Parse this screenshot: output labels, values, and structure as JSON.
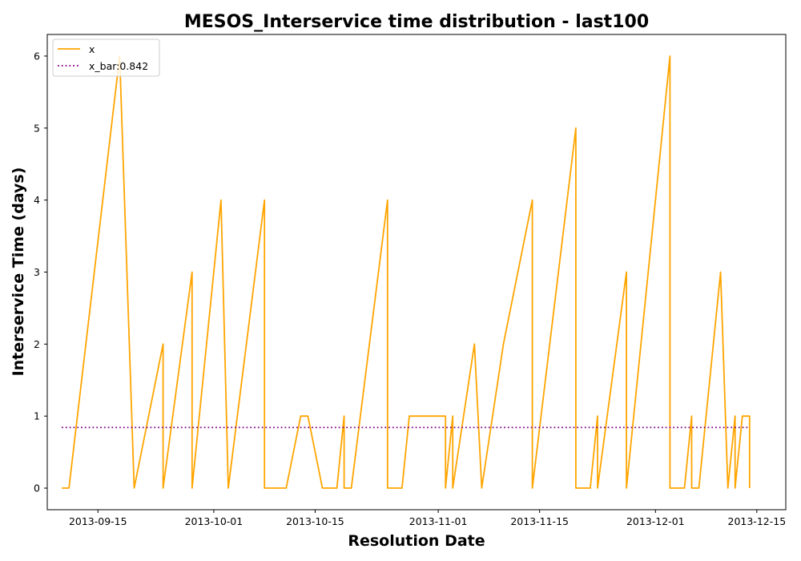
{
  "chart_data": {
    "type": "line",
    "title": "MESOS_Interservice time distribution - last100",
    "xlabel": "Resolution Date",
    "ylabel": "Interservice Time (days)",
    "xlim": [
      "2013-09-08",
      "2013-12-19"
    ],
    "ylim": [
      -0.3,
      6.3
    ],
    "xticks": [
      "2013-09-15",
      "2013-10-01",
      "2013-10-15",
      "2013-11-01",
      "2013-11-15",
      "2013-12-01",
      "2013-12-15"
    ],
    "yticks": [
      0,
      1,
      2,
      3,
      4,
      5,
      6
    ],
    "grid": false,
    "legend_location": "upper left",
    "colors": {
      "x": "#ffa500",
      "x_bar": "#800080"
    },
    "series": [
      {
        "name": "x",
        "style": "solid",
        "x": [
          "2013-09-10",
          "2013-09-11",
          "2013-09-18",
          "2013-09-18",
          "2013-09-20",
          "2013-09-20",
          "2013-09-24",
          "2013-09-24",
          "2013-09-28",
          "2013-09-28",
          "2013-10-02",
          "2013-10-03",
          "2013-10-08",
          "2013-10-08",
          "2013-10-11",
          "2013-10-13",
          "2013-10-14",
          "2013-10-16",
          "2013-10-18",
          "2013-10-19",
          "2013-10-19",
          "2013-10-20",
          "2013-10-25",
          "2013-10-25",
          "2013-10-27",
          "2013-10-28",
          "2013-11-02",
          "2013-11-02",
          "2013-11-03",
          "2013-11-03",
          "2013-11-06",
          "2013-11-07",
          "2013-11-07",
          "2013-11-10",
          "2013-11-14",
          "2013-11-14",
          "2013-11-20",
          "2013-11-20",
          "2013-11-22",
          "2013-11-23",
          "2013-11-23",
          "2013-11-27",
          "2013-11-27",
          "2013-12-03",
          "2013-12-03",
          "2013-12-05",
          "2013-12-06",
          "2013-12-06",
          "2013-12-07",
          "2013-12-10",
          "2013-12-11",
          "2013-12-12",
          "2013-12-12",
          "2013-12-13",
          "2013-12-14",
          "2013-12-14"
        ],
        "values": [
          0,
          0,
          6,
          6,
          0,
          0,
          2,
          0,
          3,
          0,
          4,
          0,
          4,
          0,
          0,
          1,
          1,
          0,
          0,
          1,
          0,
          0,
          4,
          0,
          0,
          1,
          1,
          0,
          1,
          0,
          2,
          0,
          0,
          2,
          4,
          0,
          5,
          0,
          0,
          1,
          0,
          3,
          0,
          6,
          0,
          0,
          1,
          0,
          0,
          3,
          0,
          1,
          0,
          1,
          1,
          0
        ]
      },
      {
        "name": "x_bar:0.842",
        "style": "dotted",
        "x": [
          "2013-09-10",
          "2013-12-14"
        ],
        "values": [
          0.842,
          0.842
        ]
      }
    ]
  }
}
